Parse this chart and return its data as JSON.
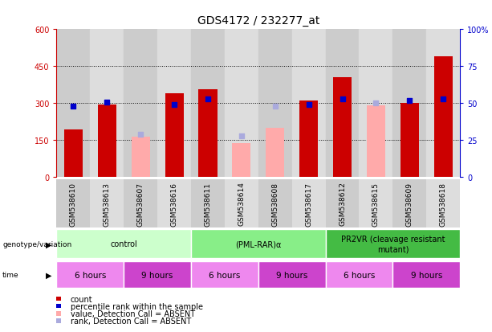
{
  "title": "GDS4172 / 232277_at",
  "samples": [
    "GSM538610",
    "GSM538613",
    "GSM538607",
    "GSM538616",
    "GSM538611",
    "GSM538614",
    "GSM538608",
    "GSM538617",
    "GSM538612",
    "GSM538615",
    "GSM538609",
    "GSM538618"
  ],
  "sample_bg_colors": [
    "#cccccc",
    "#dddddd",
    "#cccccc",
    "#dddddd",
    "#cccccc",
    "#dddddd",
    "#cccccc",
    "#dddddd",
    "#cccccc",
    "#dddddd",
    "#cccccc",
    "#dddddd"
  ],
  "count_values": [
    195,
    295,
    null,
    340,
    355,
    null,
    null,
    310,
    405,
    null,
    300,
    490
  ],
  "count_absent_values": [
    null,
    null,
    165,
    null,
    null,
    140,
    200,
    null,
    null,
    290,
    null,
    null
  ],
  "rank_values": [
    48,
    51,
    null,
    49,
    53,
    null,
    null,
    49,
    53,
    null,
    52,
    53
  ],
  "rank_absent_values": [
    null,
    null,
    29,
    null,
    null,
    28,
    48,
    null,
    null,
    50,
    null,
    null
  ],
  "ylim_left": [
    0,
    600
  ],
  "ylim_right": [
    0,
    100
  ],
  "yticks_left": [
    0,
    150,
    300,
    450,
    600
  ],
  "yticks_right": [
    0,
    25,
    50,
    75,
    100
  ],
  "ytick_labels_right": [
    "0",
    "25",
    "50",
    "75",
    "100%"
  ],
  "color_count": "#cc0000",
  "color_count_absent": "#ffaaaa",
  "color_rank": "#0000cc",
  "color_rank_absent": "#aaaadd",
  "genotype_groups": [
    {
      "label": "control",
      "start": 0,
      "end": 4,
      "color": "#ccffcc"
    },
    {
      "label": "(PML-RAR)α",
      "start": 4,
      "end": 8,
      "color": "#88ee88"
    },
    {
      "label": "PR2VR (cleavage resistant\nmutant)",
      "start": 8,
      "end": 12,
      "color": "#44bb44"
    }
  ],
  "time_groups": [
    {
      "label": "6 hours",
      "start": 0,
      "end": 2,
      "color": "#ee88ee"
    },
    {
      "label": "9 hours",
      "start": 2,
      "end": 4,
      "color": "#cc44cc"
    },
    {
      "label": "6 hours",
      "start": 4,
      "end": 6,
      "color": "#ee88ee"
    },
    {
      "label": "9 hours",
      "start": 6,
      "end": 8,
      "color": "#cc44cc"
    },
    {
      "label": "6 hours",
      "start": 8,
      "end": 10,
      "color": "#ee88ee"
    },
    {
      "label": "9 hours",
      "start": 10,
      "end": 12,
      "color": "#cc44cc"
    }
  ],
  "bar_width": 0.55,
  "rank_marker_size": 22,
  "grid_color": "#000000",
  "background_color": "#ffffff",
  "label_fontsize": 6.5,
  "tick_fontsize": 7,
  "title_fontsize": 10,
  "legend_items": [
    {
      "color": "#cc0000",
      "label": "count"
    },
    {
      "color": "#0000cc",
      "label": "percentile rank within the sample"
    },
    {
      "color": "#ffaaaa",
      "label": "value, Detection Call = ABSENT"
    },
    {
      "color": "#aaaadd",
      "label": "rank, Detection Call = ABSENT"
    }
  ]
}
